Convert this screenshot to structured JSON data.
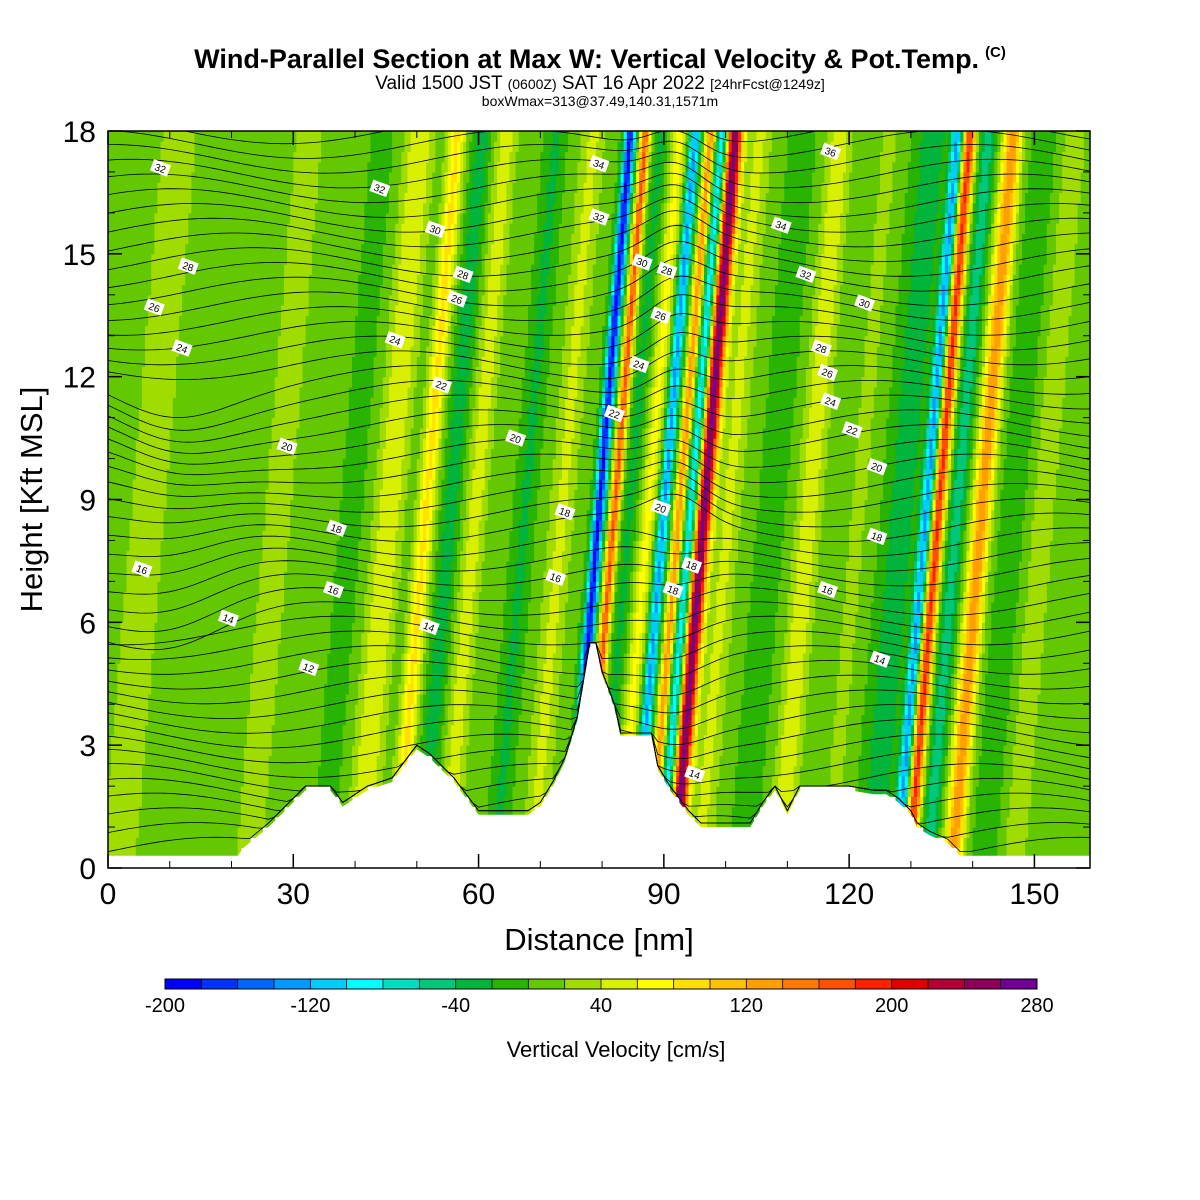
{
  "title": {
    "main": "Wind-Parallel Section at Max W: Vertical Velocity & Pot.Temp.",
    "copyright": "(C)",
    "valid_prefix": "Valid 1500 JST",
    "valid_utc": "(0600Z)",
    "valid_date": "SAT 16 Apr 2022",
    "forecast": "[24hrFcst@1249z]",
    "box_info": "boxWmax=313@37.49,140.31,1571m"
  },
  "chart_data": {
    "type": "heatmap",
    "xlabel": "Distance [nm]",
    "ylabel": "Height [Kft MSL]",
    "xlim": [
      0,
      159
    ],
    "ylim": [
      0,
      18
    ],
    "x_ticks": [
      0,
      30,
      60,
      90,
      120,
      150
    ],
    "y_ticks": [
      0,
      3,
      6,
      9,
      12,
      15,
      18
    ],
    "colorbar": {
      "label": "Vertical Velocity [cm/s]",
      "boundaries": [
        -200,
        -180,
        -160,
        -140,
        -120,
        -100,
        -80,
        -60,
        -40,
        -20,
        0,
        20,
        40,
        60,
        80,
        100,
        120,
        140,
        160,
        180,
        200,
        220,
        240,
        260,
        280
      ],
      "tick_labels": [
        -200,
        -120,
        -40,
        40,
        120,
        200,
        280
      ],
      "colors": [
        "#0000ff",
        "#0033ff",
        "#0066ff",
        "#0099ff",
        "#00ccff",
        "#00ffff",
        "#00e0c0",
        "#00c878",
        "#00b43c",
        "#28b400",
        "#64c800",
        "#a0dc00",
        "#d8f000",
        "#ffff00",
        "#ffe000",
        "#ffc000",
        "#ffa000",
        "#ff7800",
        "#ff5000",
        "#ff2000",
        "#e00000",
        "#b40032",
        "#8c005a",
        "#6e0096"
      ]
    },
    "background_velocity_cm_s": 5,
    "velocity_bands": [
      {
        "x": 5,
        "width": 5,
        "w": 20
      },
      {
        "x": 19,
        "width": 3,
        "w": -5
      },
      {
        "x": 26,
        "width": 2.5,
        "w": 30
      },
      {
        "x": 38,
        "width": 1.6,
        "w": -20
      },
      {
        "x": 44,
        "width": 2.3,
        "w": 55
      },
      {
        "x": 50,
        "width": 1.4,
        "w": 80
      },
      {
        "x": 54,
        "width": 1.5,
        "w": -40
      },
      {
        "x": 58,
        "width": 1.8,
        "w": 45
      },
      {
        "x": 66,
        "width": 1.5,
        "w": -30
      },
      {
        "x": 72,
        "width": 2,
        "w": 40
      },
      {
        "x": 78,
        "width": 0.9,
        "w": -190
      },
      {
        "x": 80.5,
        "width": 0.8,
        "w": 160
      },
      {
        "x": 83,
        "width": 1.2,
        "w": -30
      },
      {
        "x": 86,
        "width": 1.3,
        "w": 60
      },
      {
        "x": 88.5,
        "width": 0.9,
        "w": -130
      },
      {
        "x": 91,
        "width": 0.8,
        "w": 130
      },
      {
        "x": 93,
        "width": 1,
        "w": -110
      },
      {
        "x": 95,
        "width": 1.3,
        "w": 260
      },
      {
        "x": 99,
        "width": 2,
        "w": 40
      },
      {
        "x": 106,
        "width": 2,
        "w": -20
      },
      {
        "x": 112,
        "width": 2,
        "w": 50
      },
      {
        "x": 120,
        "width": 2,
        "w": 20
      },
      {
        "x": 127,
        "width": 2.5,
        "w": -40
      },
      {
        "x": 131,
        "width": 0.9,
        "w": -130
      },
      {
        "x": 133,
        "width": 1,
        "w": 180
      },
      {
        "x": 136,
        "width": 1.2,
        "w": -60
      },
      {
        "x": 140,
        "width": 1.5,
        "w": 130
      },
      {
        "x": 145,
        "width": 2,
        "w": -20
      },
      {
        "x": 150,
        "width": 2,
        "w": 30
      }
    ],
    "terrain_kft": [
      [
        0,
        0.3
      ],
      [
        21,
        0.3
      ],
      [
        22,
        0.5
      ],
      [
        26,
        1
      ],
      [
        28,
        1.3
      ],
      [
        30,
        1.6
      ],
      [
        32,
        1.9
      ],
      [
        36,
        1.9
      ],
      [
        38,
        1.5
      ],
      [
        42,
        1.9
      ],
      [
        46,
        2.1
      ],
      [
        48,
        2.5
      ],
      [
        50,
        2.9
      ],
      [
        52,
        2.7
      ],
      [
        54,
        2.4
      ],
      [
        56,
        2.1
      ],
      [
        58,
        1.7
      ],
      [
        60,
        1.3
      ],
      [
        68,
        1.3
      ],
      [
        70,
        1.5
      ],
      [
        72,
        2.0
      ],
      [
        74,
        2.6
      ],
      [
        76,
        3.6
      ],
      [
        77,
        4.5
      ],
      [
        78,
        5.4
      ],
      [
        79,
        5.4
      ],
      [
        80,
        4.7
      ],
      [
        82,
        3.9
      ],
      [
        83,
        3.2
      ],
      [
        88,
        3.2
      ],
      [
        89,
        2.4
      ],
      [
        91,
        1.9
      ],
      [
        94,
        1.3
      ],
      [
        96,
        1.0
      ],
      [
        104,
        1.0
      ],
      [
        106,
        1.5
      ],
      [
        108,
        1.9
      ],
      [
        110,
        1.3
      ],
      [
        112,
        1.9
      ],
      [
        120,
        1.9
      ],
      [
        124,
        1.8
      ],
      [
        126,
        1.8
      ],
      [
        128,
        1.6
      ],
      [
        130,
        1.3
      ],
      [
        131,
        1.0
      ],
      [
        133,
        0.8
      ],
      [
        136,
        0.6
      ],
      [
        138,
        0.3
      ],
      [
        159,
        0.3
      ]
    ],
    "theta_contour_labels": [
      {
        "text": "32",
        "x": 8.5,
        "y": 17.1
      },
      {
        "text": "32",
        "x": 44,
        "y": 16.6
      },
      {
        "text": "30",
        "x": 53,
        "y": 15.6
      },
      {
        "text": "28",
        "x": 13,
        "y": 14.7
      },
      {
        "text": "28",
        "x": 57.5,
        "y": 14.5
      },
      {
        "text": "26",
        "x": 7.5,
        "y": 13.7
      },
      {
        "text": "26",
        "x": 56.5,
        "y": 13.9
      },
      {
        "text": "24",
        "x": 12,
        "y": 12.7
      },
      {
        "text": "24",
        "x": 46.5,
        "y": 12.9
      },
      {
        "text": "22",
        "x": 54,
        "y": 11.8
      },
      {
        "text": "20",
        "x": 29,
        "y": 10.3
      },
      {
        "text": "20",
        "x": 66,
        "y": 10.5
      },
      {
        "text": "18",
        "x": 37,
        "y": 8.3
      },
      {
        "text": "18",
        "x": 74,
        "y": 8.7
      },
      {
        "text": "16",
        "x": 5.5,
        "y": 7.3
      },
      {
        "text": "16",
        "x": 36.5,
        "y": 6.8
      },
      {
        "text": "16",
        "x": 72.5,
        "y": 7.1
      },
      {
        "text": "14",
        "x": 19.5,
        "y": 6.1
      },
      {
        "text": "14",
        "x": 52,
        "y": 5.9
      },
      {
        "text": "12",
        "x": 32.5,
        "y": 4.9
      },
      {
        "text": "34",
        "x": 79.5,
        "y": 17.2
      },
      {
        "text": "32",
        "x": 79.5,
        "y": 15.9
      },
      {
        "text": "30",
        "x": 86.5,
        "y": 14.8
      },
      {
        "text": "28",
        "x": 90.5,
        "y": 14.6
      },
      {
        "text": "26",
        "x": 89.5,
        "y": 13.5
      },
      {
        "text": "24",
        "x": 86,
        "y": 12.3
      },
      {
        "text": "22",
        "x": 82,
        "y": 11.1
      },
      {
        "text": "20",
        "x": 89.5,
        "y": 8.8
      },
      {
        "text": "18",
        "x": 94.5,
        "y": 7.4
      },
      {
        "text": "18",
        "x": 91.5,
        "y": 6.8
      },
      {
        "text": "14",
        "x": 95,
        "y": 2.3
      },
      {
        "text": "36",
        "x": 117,
        "y": 17.5
      },
      {
        "text": "34",
        "x": 109,
        "y": 15.7
      },
      {
        "text": "32",
        "x": 113,
        "y": 14.5
      },
      {
        "text": "30",
        "x": 122.5,
        "y": 13.8
      },
      {
        "text": "28",
        "x": 115.5,
        "y": 12.7
      },
      {
        "text": "26",
        "x": 116.5,
        "y": 12.1
      },
      {
        "text": "24",
        "x": 117,
        "y": 11.4
      },
      {
        "text": "22",
        "x": 120.5,
        "y": 10.7
      },
      {
        "text": "20",
        "x": 124.5,
        "y": 9.8
      },
      {
        "text": "18",
        "x": 124.5,
        "y": 8.1
      },
      {
        "text": "16",
        "x": 116.5,
        "y": 6.8
      },
      {
        "text": "14",
        "x": 125,
        "y": 5.1
      }
    ]
  }
}
